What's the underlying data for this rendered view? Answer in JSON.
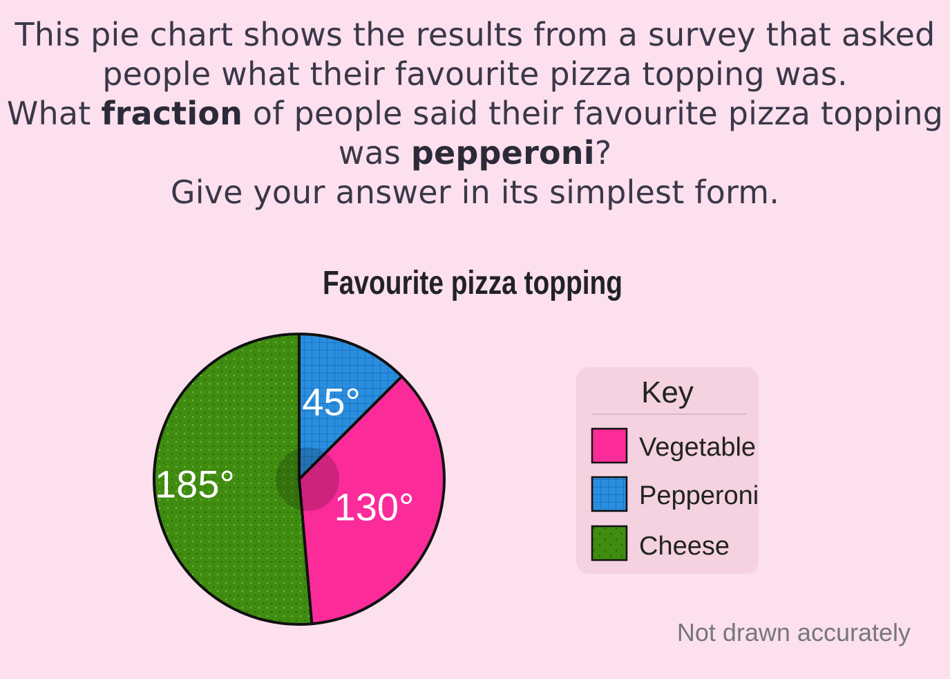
{
  "question": {
    "line1": "This pie chart shows the results from a survey that asked",
    "line2": "people what their favourite pizza topping was.",
    "line3_pre": "What ",
    "line3_bold": "fraction",
    "line3_post": " of people said their favourite pizza topping",
    "line4_pre": "was ",
    "line4_bold": "pepperoni",
    "line4_post": "?",
    "line5": "Give your answer in its simplest form."
  },
  "chart_data": {
    "type": "pie",
    "title": "Favourite pizza topping",
    "slices": [
      {
        "name": "Pepperoni",
        "value": 45,
        "label": "45°",
        "color": "#2a8ee0"
      },
      {
        "name": "Vegetable",
        "value": 130,
        "label": "130°",
        "color": "#fb2b99"
      },
      {
        "name": "Cheese",
        "value": 185,
        "label": "185°",
        "color": "#3f8c10"
      }
    ],
    "legend": {
      "title": "Key",
      "position": "right",
      "entries": [
        "Vegetable",
        "Pepperoni",
        "Cheese"
      ]
    },
    "note": "Not drawn accurately"
  },
  "colors": {
    "background": "#fce0ee",
    "key_box": "#f4d2e0",
    "outline": "#111111"
  }
}
